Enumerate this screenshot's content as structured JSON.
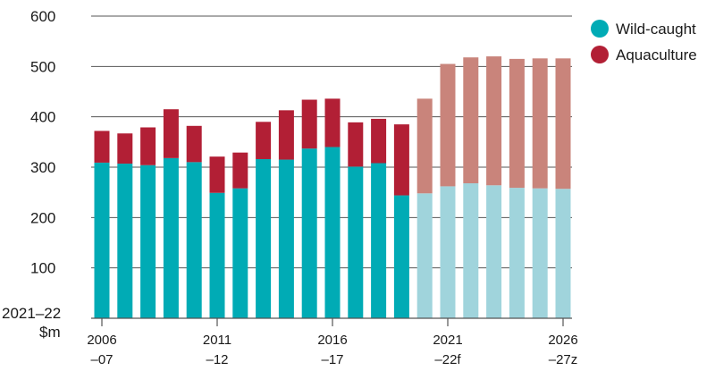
{
  "chart_data": {
    "type": "bar",
    "stacked": true,
    "ylabel_lines": [
      "2021–22",
      "$m"
    ],
    "ylim": [
      0,
      600
    ],
    "yticks": [
      100,
      200,
      300,
      400,
      500,
      600
    ],
    "grid": true,
    "legend_position": "top-right",
    "categories": [
      "2006–07",
      "2007–08",
      "2008–09",
      "2009–10",
      "2010–11",
      "2011–12",
      "2012–13",
      "2013–14",
      "2014–15",
      "2015–16",
      "2016–17",
      "2017–18",
      "2018–19",
      "2019–20",
      "2020–21",
      "2021–22f",
      "2022–23z",
      "2023–24z",
      "2024–25z",
      "2025–26z",
      "2026–27z"
    ],
    "x_tick_labels": [
      {
        "index": 0,
        "line1": "2006",
        "line2": "–07"
      },
      {
        "index": 5,
        "line1": "2011",
        "line2": "–12"
      },
      {
        "index": 10,
        "line1": "2016",
        "line2": "–17"
      },
      {
        "index": 15,
        "line1": "2021",
        "line2": "–22f"
      },
      {
        "index": 20,
        "line1": "2026",
        "line2": "–27z"
      }
    ],
    "forecast_start_index": 14,
    "series": [
      {
        "name": "Wild-caught",
        "values": [
          309,
          307,
          304,
          318,
          310,
          249,
          258,
          316,
          315,
          337,
          340,
          301,
          308,
          244,
          248,
          262,
          268,
          264,
          259,
          258,
          257
        ],
        "color": "#00abb5",
        "forecast_color": "#a0d4dc"
      },
      {
        "name": "Aquaculture",
        "values": [
          63,
          60,
          75,
          97,
          72,
          72,
          71,
          74,
          98,
          97,
          96,
          88,
          88,
          141,
          188,
          243,
          250,
          256,
          256,
          258,
          259
        ],
        "color": "#b21f35",
        "forecast_color": "#c9847b"
      }
    ]
  }
}
